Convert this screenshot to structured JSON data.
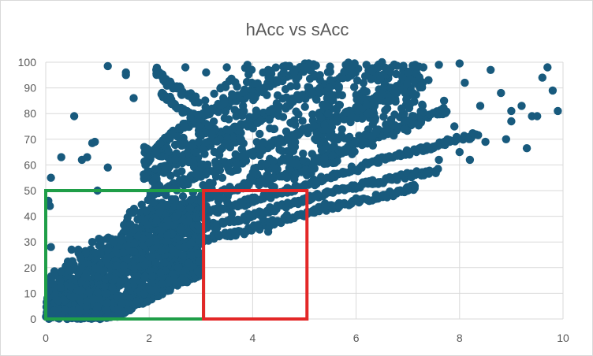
{
  "chart_data": {
    "type": "scatter",
    "title": "hAcc vs sAcc",
    "xlabel": "",
    "ylabel": "",
    "xlim": [
      0,
      10
    ],
    "ylim": [
      0,
      100
    ],
    "x_ticks": [
      0,
      2,
      4,
      6,
      8,
      10
    ],
    "y_ticks": [
      0,
      10,
      20,
      30,
      40,
      50,
      60,
      70,
      80,
      90,
      100
    ],
    "grid": "both",
    "legend": "none",
    "marker_color": "#185a7d",
    "clusters": [
      {
        "x_range": [
          0,
          3.0
        ],
        "y_range": [
          0,
          45
        ],
        "count": 1400,
        "note_dense_core": true
      }
    ],
    "curves": [
      {
        "points": [
          [
            1.9,
            60
          ],
          [
            2.4,
            72
          ],
          [
            3.3,
            82
          ],
          [
            4.4,
            92
          ],
          [
            5.2,
            100
          ]
        ]
      },
      {
        "points": [
          [
            1.9,
            55
          ],
          [
            2.8,
            65
          ],
          [
            3.8,
            75
          ],
          [
            4.8,
            85
          ],
          [
            6.0,
            96
          ]
        ]
      },
      {
        "points": [
          [
            2.0,
            48
          ],
          [
            3.2,
            58
          ],
          [
            4.4,
            68
          ],
          [
            5.6,
            78
          ],
          [
            6.6,
            88
          ],
          [
            7.2,
            95
          ]
        ]
      },
      {
        "points": [
          [
            2.2,
            42
          ],
          [
            3.5,
            50
          ],
          [
            4.8,
            58
          ],
          [
            6.0,
            68
          ],
          [
            7.0,
            76
          ],
          [
            7.8,
            82
          ]
        ]
      },
      {
        "points": [
          [
            2.4,
            38
          ],
          [
            3.8,
            45
          ],
          [
            5.0,
            52
          ],
          [
            6.2,
            60
          ],
          [
            7.4,
            67
          ],
          [
            8.4,
            72
          ]
        ]
      },
      {
        "points": [
          [
            2.6,
            34
          ],
          [
            3.6,
            38
          ],
          [
            4.6,
            44
          ],
          [
            5.4,
            49
          ],
          [
            6.8,
            55
          ],
          [
            7.6,
            58
          ]
        ]
      },
      {
        "points": [
          [
            2.8,
            30
          ],
          [
            3.8,
            34
          ],
          [
            4.8,
            40
          ],
          [
            5.6,
            44
          ],
          [
            6.6,
            48
          ],
          [
            7.2,
            52
          ]
        ]
      },
      {
        "points": [
          [
            2.2,
            88
          ],
          [
            2.6,
            82
          ],
          [
            3.2,
            74
          ],
          [
            3.8,
            68
          ]
        ]
      },
      {
        "points": [
          [
            2.1,
            97
          ],
          [
            2.5,
            90
          ],
          [
            3.0,
            84
          ]
        ]
      },
      {
        "points": [
          [
            1.9,
            66
          ],
          [
            2.5,
            63
          ],
          [
            3.1,
            60
          ]
        ]
      }
    ],
    "points": [
      [
        0.1,
        55
      ],
      [
        0.3,
        63
      ],
      [
        0.55,
        79
      ],
      [
        0.7,
        62
      ],
      [
        0.8,
        63
      ],
      [
        0.9,
        68.5
      ],
      [
        0.95,
        69
      ],
      [
        1.2,
        59
      ],
      [
        1.2,
        98.5
      ],
      [
        1.55,
        96
      ],
      [
        1.7,
        86
      ],
      [
        1.55,
        95
      ],
      [
        0.05,
        46
      ],
      [
        0.08,
        44
      ],
      [
        0.1,
        28
      ],
      [
        0.5,
        27
      ],
      [
        1.0,
        50
      ],
      [
        0.9,
        30
      ],
      [
        8.0,
        65
      ],
      [
        8.4,
        83
      ],
      [
        8.6,
        97
      ],
      [
        8.8,
        88
      ],
      [
        9.0,
        77
      ],
      [
        9.3,
        66.5
      ],
      [
        9.4,
        79
      ],
      [
        9.5,
        79
      ],
      [
        9.8,
        89
      ],
      [
        9.9,
        81
      ],
      [
        9.7,
        98
      ],
      [
        9.2,
        83
      ],
      [
        9.6,
        94
      ],
      [
        7.9,
        75
      ],
      [
        7.6,
        62
      ],
      [
        8.2,
        62
      ],
      [
        8.5,
        69
      ],
      [
        8.9,
        70
      ],
      [
        9.0,
        81
      ],
      [
        7.3,
        98
      ],
      [
        7.6,
        99
      ],
      [
        8.0,
        99.5
      ],
      [
        5.8,
        99
      ],
      [
        6.2,
        99
      ],
      [
        6.5,
        100
      ],
      [
        7.0,
        96
      ],
      [
        7.1,
        88
      ],
      [
        7.4,
        93
      ],
      [
        7.7,
        85
      ],
      [
        8.1,
        92
      ],
      [
        3.5,
        98
      ],
      [
        3.9,
        99
      ],
      [
        4.3,
        97
      ],
      [
        4.6,
        96
      ],
      [
        5.0,
        98
      ],
      [
        5.3,
        95
      ],
      [
        2.7,
        98
      ],
      [
        3.1,
        96
      ],
      [
        3.6,
        41
      ],
      [
        4.2,
        39
      ],
      [
        4.3,
        34
      ],
      [
        5.0,
        40
      ],
      [
        5.4,
        45
      ],
      [
        6.0,
        47
      ],
      [
        6.5,
        48
      ],
      [
        7.0,
        50
      ]
    ],
    "annotations": [
      {
        "type": "rectangle",
        "color": "#1f9e48",
        "x_range": [
          0,
          3.05
        ],
        "y_range": [
          0,
          50
        ]
      },
      {
        "type": "rectangle",
        "color": "#e32727",
        "x_range": [
          3.05,
          5.05
        ],
        "y_range": [
          0,
          50
        ]
      }
    ]
  }
}
